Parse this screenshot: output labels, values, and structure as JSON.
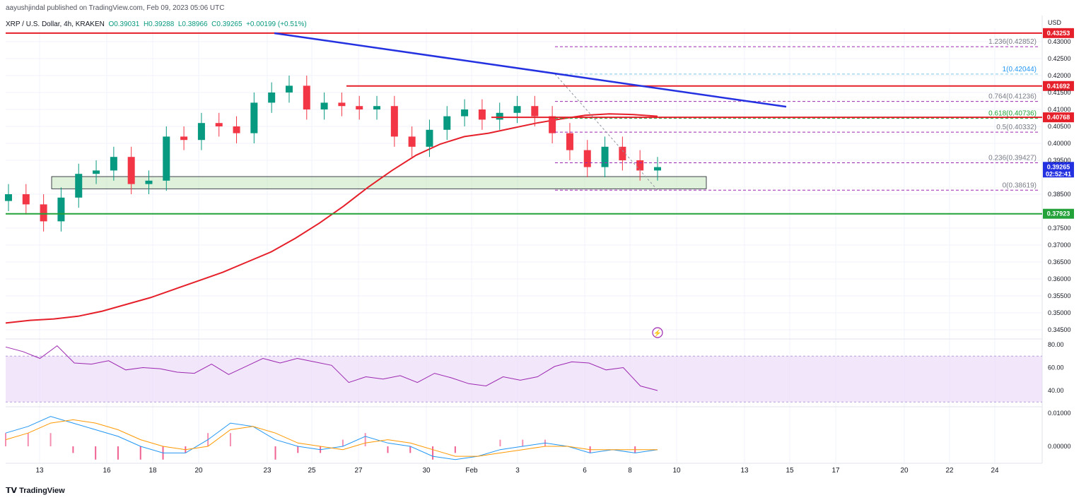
{
  "header": {
    "published_by": "aayushjindal published on TradingView.com, Feb 09, 2023 05:06 UTC",
    "symbol": "XRP / U.S. Dollar, 4h, KRAKEN",
    "open": "O0.39031",
    "high": "H0.39288",
    "low": "L0.38966",
    "close": "C0.39265",
    "change": "+0.00199 (+0.51%)"
  },
  "footer": {
    "logo_text": "TradingView"
  },
  "colors": {
    "up": "#089981",
    "down": "#f23645",
    "ma": "#e5202a",
    "trendline": "#2431e0",
    "resistance": "#e5202a",
    "support": "#23a23a",
    "fib": "#9c27b0",
    "zone": "#b7e0b0",
    "rsi_line": "#9c27b0",
    "rsi_band": "#e9d5f7",
    "macd": "#2196f3",
    "signal": "#ff9800",
    "hist_up": "#f48fb1"
  },
  "chart_data": [
    {
      "type": "candlestick",
      "title": "XRP / U.S. Dollar, 4h, KRAKEN",
      "ylabel": "USD",
      "ylim": [
        0.341,
        0.4345
      ],
      "price_ticks": [
        "0.43000",
        "0.42500",
        "0.42000",
        "0.41500",
        "0.41000",
        "0.40500",
        "0.40000",
        "0.39500",
        "0.38500",
        "0.37500",
        "0.37000",
        "0.36500",
        "0.36000",
        "0.35500",
        "0.35000",
        "0.34500"
      ],
      "date_ticks": [
        "13",
        "16",
        "18",
        "20",
        "23",
        "25",
        "27",
        "30",
        "Feb",
        "3",
        "6",
        "8",
        "10",
        "13",
        "15",
        "17",
        "20",
        "22",
        "24"
      ],
      "key_levels": [
        {
          "label": "0.43253",
          "value": 0.43253,
          "color": "#e5202a"
        },
        {
          "label": "0.41692",
          "value": 0.41692,
          "color": "#e5202a"
        },
        {
          "label": "0.40768",
          "value": 0.40768,
          "color": "#e5202a"
        },
        {
          "label": "0.37923",
          "value": 0.37923,
          "color": "#23a23a"
        }
      ],
      "current_price": {
        "label": "0.39265",
        "countdown": "02:52:41",
        "value": 0.39265
      },
      "fib_levels": [
        {
          "label": "1.236(0.42852)",
          "value": 0.42852
        },
        {
          "label": "1(0.42044)",
          "value": 0.42044
        },
        {
          "label": "0.764(0.41236)",
          "value": 0.41236
        },
        {
          "label": "0.618(0.40736)",
          "value": 0.40736
        },
        {
          "label": "0.5(0.40332)",
          "value": 0.40332
        },
        {
          "label": "0.236(0.39427)",
          "value": 0.39427
        },
        {
          "label": "0(0.38619)",
          "value": 0.38619
        }
      ],
      "support_zone": [
        0.3866,
        0.3902
      ],
      "trendline": [
        {
          "date": "Jan 23",
          "value": 0.4325
        },
        {
          "date": "Feb 15",
          "value": 0.4108
        }
      ],
      "ma_points": [
        0.347,
        0.3478,
        0.3482,
        0.349,
        0.3505,
        0.3525,
        0.3545,
        0.357,
        0.3595,
        0.362,
        0.365,
        0.368,
        0.372,
        0.3765,
        0.3815,
        0.387,
        0.392,
        0.3965,
        0.3998,
        0.402,
        0.403,
        0.4045,
        0.406,
        0.4072,
        0.4083,
        0.4087,
        0.4085,
        0.408
      ],
      "closes": [
        0.385,
        0.382,
        0.377,
        0.384,
        0.391,
        0.392,
        0.396,
        0.388,
        0.389,
        0.402,
        0.401,
        0.406,
        0.405,
        0.403,
        0.412,
        0.415,
        0.417,
        0.41,
        0.412,
        0.411,
        0.41,
        0.411,
        0.402,
        0.399,
        0.404,
        0.408,
        0.41,
        0.407,
        0.409,
        0.411,
        0.408,
        0.403,
        0.398,
        0.393,
        0.399,
        0.395,
        0.392,
        0.393
      ]
    },
    {
      "type": "line",
      "title": "",
      "ylim": [
        25,
        85
      ],
      "ticks": [
        "80.00",
        "60.00",
        "40.00"
      ],
      "band": [
        30,
        70
      ],
      "values": [
        78,
        74,
        68,
        79,
        64,
        63,
        66,
        58,
        60,
        59,
        56,
        55,
        63,
        54,
        61,
        68,
        64,
        68,
        65,
        62,
        47,
        52,
        50,
        53,
        47,
        55,
        51,
        46,
        44,
        52,
        49,
        52,
        61,
        65,
        64,
        58,
        60,
        44,
        40
      ]
    },
    {
      "type": "macd",
      "title": "",
      "ticks": [
        "0.01000",
        "0.00000"
      ],
      "macd": [
        0.004,
        0.006,
        0.009,
        0.007,
        0.005,
        0.003,
        0.0,
        -0.002,
        -0.002,
        0.002,
        0.007,
        0.006,
        0.002,
        0.0,
        -0.001,
        0.0,
        0.003,
        0.001,
        0.0,
        -0.003,
        -0.004,
        -0.003,
        -0.001,
        0.0,
        0.001,
        0.0,
        -0.002,
        -0.001,
        -0.002,
        -0.001
      ],
      "signal": [
        0.002,
        0.004,
        0.007,
        0.008,
        0.007,
        0.005,
        0.002,
        0.0,
        -0.001,
        0.0,
        0.005,
        0.006,
        0.004,
        0.001,
        0.0,
        -0.001,
        0.001,
        0.002,
        0.001,
        -0.001,
        -0.003,
        -0.003,
        -0.002,
        -0.001,
        0.0,
        0.0,
        -0.001,
        -0.001,
        -0.001,
        -0.001
      ]
    }
  ]
}
